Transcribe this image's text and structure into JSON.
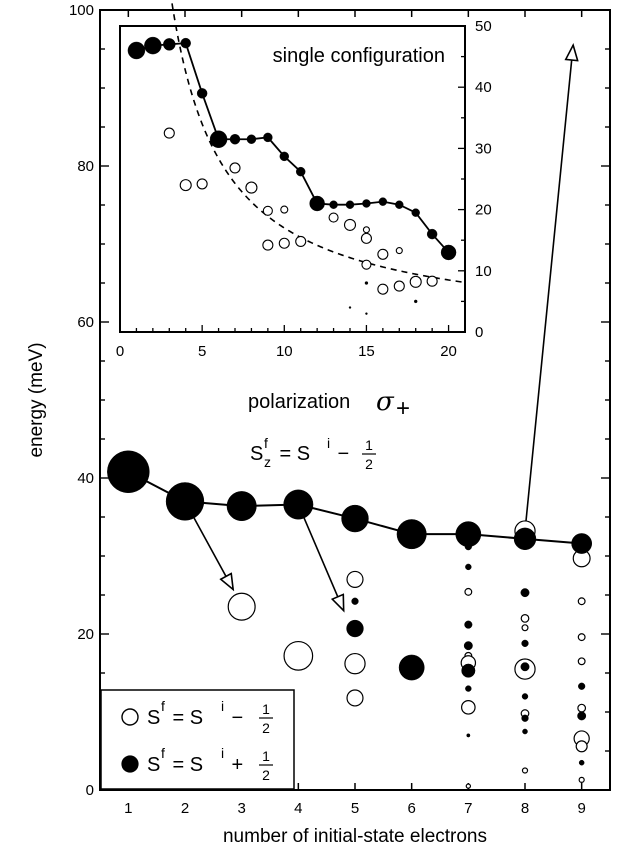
{
  "chart_data": [
    {
      "type": "scatter",
      "xlabel": "number of initial-state electrons",
      "ylabel": "energy (meV)",
      "xlim": [
        0.5,
        9.5
      ],
      "ylim": [
        0,
        100
      ],
      "x_ticks": [
        1,
        2,
        3,
        4,
        5,
        6,
        7,
        8,
        9
      ],
      "y_ticks": [
        0,
        20,
        40,
        60,
        80,
        100
      ],
      "grid": false,
      "annotations": {
        "polarization": "polarization",
        "sigma": "σ",
        "sigma_sub": "+",
        "rule_lhs": "S",
        "rule_sup": "f",
        "rule_sub": "z",
        "rule_mid": " = S",
        "rule_sup2": "i",
        "rule_minus": " − ",
        "frac_num": "1",
        "frac_den": "2"
      },
      "legend": {
        "position": "bottom-left",
        "entries": [
          {
            "marker": "open",
            "s": "S",
            "f": "f",
            "eq": " = S",
            "i": "i",
            "op": " − ",
            "num": "1",
            "den": "2"
          },
          {
            "marker": "filled",
            "s": "S",
            "f": "f",
            "eq": " = S",
            "i": "i",
            "op": " + ",
            "num": "1",
            "den": "2"
          }
        ]
      },
      "connected_series": {
        "marker": "filled",
        "x": [
          1,
          2,
          3,
          4,
          5,
          6,
          7,
          8,
          9
        ],
        "y": [
          40.8,
          37.0,
          36.4,
          36.6,
          34.8,
          32.8,
          32.8,
          32.2,
          31.6
        ],
        "size": [
          5,
          4.5,
          3.5,
          3.5,
          3.2,
          3.5,
          3,
          2.6,
          2.4
        ]
      },
      "points": [
        {
          "x": 3,
          "y": 23.5,
          "marker": "open",
          "size": 3.2
        },
        {
          "x": 4,
          "y": 17.2,
          "marker": "open",
          "size": 3.4
        },
        {
          "x": 5,
          "y": 27.0,
          "marker": "open",
          "size": 1.9
        },
        {
          "x": 5,
          "y": 24.2,
          "marker": "filled",
          "size": 0.8
        },
        {
          "x": 5,
          "y": 20.7,
          "marker": "filled",
          "size": 2.0
        },
        {
          "x": 5,
          "y": 16.2,
          "marker": "open",
          "size": 2.4
        },
        {
          "x": 5,
          "y": 11.8,
          "marker": "open",
          "size": 1.9
        },
        {
          "x": 6,
          "y": 15.7,
          "marker": "filled",
          "size": 3.0
        },
        {
          "x": 7,
          "y": 31.2,
          "marker": "filled",
          "size": 0.8
        },
        {
          "x": 7,
          "y": 28.6,
          "marker": "filled",
          "size": 0.7
        },
        {
          "x": 7,
          "y": 25.4,
          "marker": "open",
          "size": 0.8
        },
        {
          "x": 7,
          "y": 21.2,
          "marker": "filled",
          "size": 0.9
        },
        {
          "x": 7,
          "y": 18.5,
          "marker": "filled",
          "size": 1.0
        },
        {
          "x": 7,
          "y": 17.2,
          "marker": "open",
          "size": 0.8
        },
        {
          "x": 7,
          "y": 16.3,
          "marker": "open",
          "size": 1.7
        },
        {
          "x": 7,
          "y": 15.3,
          "marker": "filled",
          "size": 1.6
        },
        {
          "x": 7,
          "y": 13.0,
          "marker": "filled",
          "size": 0.7
        },
        {
          "x": 7,
          "y": 10.6,
          "marker": "open",
          "size": 1.6
        },
        {
          "x": 7,
          "y": 7.0,
          "marker": "filled",
          "size": 0.4
        },
        {
          "x": 7,
          "y": 0.5,
          "marker": "open",
          "size": 0.5
        },
        {
          "x": 8,
          "y": 33.2,
          "marker": "open",
          "size": 2.4
        },
        {
          "x": 8,
          "y": 25.3,
          "marker": "filled",
          "size": 1.0
        },
        {
          "x": 8,
          "y": 22.0,
          "marker": "open",
          "size": 0.9
        },
        {
          "x": 8,
          "y": 20.8,
          "marker": "open",
          "size": 0.7
        },
        {
          "x": 8,
          "y": 18.8,
          "marker": "filled",
          "size": 0.8
        },
        {
          "x": 8,
          "y": 15.5,
          "marker": "open",
          "size": 2.4
        },
        {
          "x": 8,
          "y": 15.8,
          "marker": "filled",
          "size": 1.0
        },
        {
          "x": 8,
          "y": 12.0,
          "marker": "filled",
          "size": 0.7
        },
        {
          "x": 8,
          "y": 9.8,
          "marker": "open",
          "size": 0.9
        },
        {
          "x": 8,
          "y": 9.2,
          "marker": "filled",
          "size": 0.8
        },
        {
          "x": 8,
          "y": 7.5,
          "marker": "filled",
          "size": 0.6
        },
        {
          "x": 8,
          "y": 2.5,
          "marker": "open",
          "size": 0.6
        },
        {
          "x": 9,
          "y": 29.7,
          "marker": "open",
          "size": 2.0
        },
        {
          "x": 9,
          "y": 24.2,
          "marker": "open",
          "size": 0.8
        },
        {
          "x": 9,
          "y": 19.6,
          "marker": "open",
          "size": 0.8
        },
        {
          "x": 9,
          "y": 16.5,
          "marker": "open",
          "size": 0.8
        },
        {
          "x": 9,
          "y": 13.3,
          "marker": "filled",
          "size": 0.8
        },
        {
          "x": 9,
          "y": 10.5,
          "marker": "open",
          "size": 0.9
        },
        {
          "x": 9,
          "y": 9.5,
          "marker": "filled",
          "size": 1.0
        },
        {
          "x": 9,
          "y": 6.6,
          "marker": "open",
          "size": 1.8
        },
        {
          "x": 9,
          "y": 5.6,
          "marker": "open",
          "size": 1.3
        },
        {
          "x": 9,
          "y": 3.5,
          "marker": "filled",
          "size": 0.6
        },
        {
          "x": 9,
          "y": 1.3,
          "marker": "open",
          "size": 0.6
        }
      ],
      "arrows": [
        {
          "from": [
            2,
            37.0
          ],
          "to": [
            2.85,
            25.7
          ]
        },
        {
          "from": [
            4,
            36.6
          ],
          "to": [
            4.8,
            23.0
          ]
        },
        {
          "from": [
            8,
            33.2
          ],
          "to": [
            8.85,
            95.5
          ]
        }
      ]
    },
    {
      "type": "scatter",
      "title": "single configuration",
      "xlim": [
        0,
        21
      ],
      "ylim": [
        0,
        50
      ],
      "x_ticks": [
        0,
        5,
        10,
        15,
        20
      ],
      "y_ticks": [
        0,
        10,
        20,
        30,
        40,
        50
      ],
      "y_axis_side": "right",
      "grid": false,
      "connected_series": {
        "marker": "filled",
        "x": [
          1,
          2,
          3,
          4,
          5,
          6,
          7,
          8,
          9,
          10,
          11,
          12,
          13,
          14,
          15,
          16,
          17,
          18,
          19,
          20
        ],
        "y": [
          46.0,
          46.8,
          47.0,
          47.2,
          39.0,
          31.5,
          31.5,
          31.5,
          31.8,
          28.7,
          26.2,
          21.0,
          20.8,
          20.8,
          21.0,
          21.3,
          20.8,
          19.5,
          16.0,
          13.0
        ],
        "size": [
          1.7,
          1.7,
          1.2,
          1.0,
          1.0,
          1.7,
          1.0,
          0.9,
          0.9,
          0.9,
          0.9,
          1.5,
          0.8,
          0.8,
          0.8,
          0.8,
          0.8,
          0.8,
          1.0,
          1.5
        ]
      },
      "dashed_curve": {
        "a": 170,
        "b": 0.9,
        "x_start": 1.3,
        "x_end": 21
      },
      "points": [
        {
          "x": 3,
          "y": 32.5,
          "marker": "open",
          "size": 1.0
        },
        {
          "x": 4,
          "y": 24.0,
          "marker": "open",
          "size": 1.1
        },
        {
          "x": 5,
          "y": 24.2,
          "marker": "open",
          "size": 1.0
        },
        {
          "x": 7,
          "y": 26.8,
          "marker": "open",
          "size": 1.0
        },
        {
          "x": 8,
          "y": 23.6,
          "marker": "open",
          "size": 1.1
        },
        {
          "x": 9,
          "y": 19.8,
          "marker": "open",
          "size": 0.9
        },
        {
          "x": 10,
          "y": 20.0,
          "marker": "open",
          "size": 0.7
        },
        {
          "x": 9,
          "y": 14.2,
          "marker": "open",
          "size": 1.0
        },
        {
          "x": 10,
          "y": 14.5,
          "marker": "open",
          "size": 1.0
        },
        {
          "x": 11,
          "y": 14.8,
          "marker": "open",
          "size": 1.0
        },
        {
          "x": 13,
          "y": 18.7,
          "marker": "open",
          "size": 0.9
        },
        {
          "x": 14,
          "y": 17.5,
          "marker": "open",
          "size": 1.1
        },
        {
          "x": 15,
          "y": 15.3,
          "marker": "open",
          "size": 1.0
        },
        {
          "x": 15,
          "y": 16.7,
          "marker": "open",
          "size": 0.6
        },
        {
          "x": 15,
          "y": 11.0,
          "marker": "open",
          "size": 0.9
        },
        {
          "x": 15,
          "y": 8.0,
          "marker": "filled",
          "size": 0.3
        },
        {
          "x": 16,
          "y": 12.7,
          "marker": "open",
          "size": 1.0
        },
        {
          "x": 17,
          "y": 13.3,
          "marker": "open",
          "size": 0.6
        },
        {
          "x": 16,
          "y": 7.0,
          "marker": "open",
          "size": 1.0
        },
        {
          "x": 17,
          "y": 7.5,
          "marker": "open",
          "size": 1.0
        },
        {
          "x": 18,
          "y": 8.2,
          "marker": "open",
          "size": 1.1
        },
        {
          "x": 19,
          "y": 8.3,
          "marker": "open",
          "size": 1.0
        },
        {
          "x": 18,
          "y": 5.0,
          "marker": "filled",
          "size": 0.3
        },
        {
          "x": 14,
          "y": 4.0,
          "marker": "filled",
          "size": 0.2
        },
        {
          "x": 15,
          "y": 3.0,
          "marker": "filled",
          "size": 0.2
        }
      ]
    }
  ]
}
